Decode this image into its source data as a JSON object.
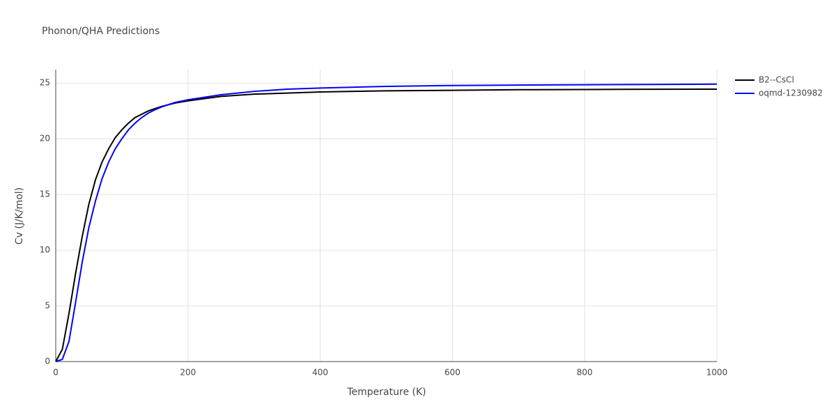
{
  "chart_data": {
    "type": "line",
    "title": "Phonon/QHA Predictions",
    "x_label": "Temperature (K)",
    "y_label": "Cv (J/K/mol)",
    "x": [
      0,
      10,
      20,
      30,
      40,
      50,
      60,
      70,
      80,
      90,
      100,
      110,
      120,
      130,
      140,
      150,
      160,
      170,
      180,
      200,
      250,
      300,
      350,
      400,
      500,
      600,
      700,
      800,
      900,
      1000
    ],
    "series": [
      {
        "name": "B2--CsCl",
        "color": "#000000",
        "values": [
          0,
          1.1,
          4.3,
          7.9,
          11.2,
          14.1,
          16.3,
          17.9,
          19.1,
          20.1,
          20.8,
          21.4,
          21.9,
          22.2,
          22.5,
          22.7,
          22.9,
          23.05,
          23.2,
          23.4,
          23.8,
          24.0,
          24.1,
          24.2,
          24.3,
          24.35,
          24.4,
          24.42,
          24.44,
          24.45
        ]
      },
      {
        "name": "oqmd-1230982",
        "color": "#0000ff",
        "values": [
          0,
          0.2,
          1.8,
          5.3,
          8.9,
          12.0,
          14.4,
          16.4,
          17.9,
          19.1,
          20.0,
          20.8,
          21.4,
          21.9,
          22.3,
          22.6,
          22.85,
          23.05,
          23.25,
          23.5,
          23.95,
          24.25,
          24.45,
          24.55,
          24.7,
          24.78,
          24.82,
          24.85,
          24.87,
          24.9
        ]
      }
    ],
    "xlim": [
      0,
      1000
    ],
    "xticks": [
      0,
      200,
      400,
      600,
      800,
      1000
    ],
    "ylim": [
      0,
      26.2
    ],
    "yticks": [
      0,
      5,
      10,
      15,
      20,
      25
    ],
    "grid": true,
    "legend": "right"
  }
}
